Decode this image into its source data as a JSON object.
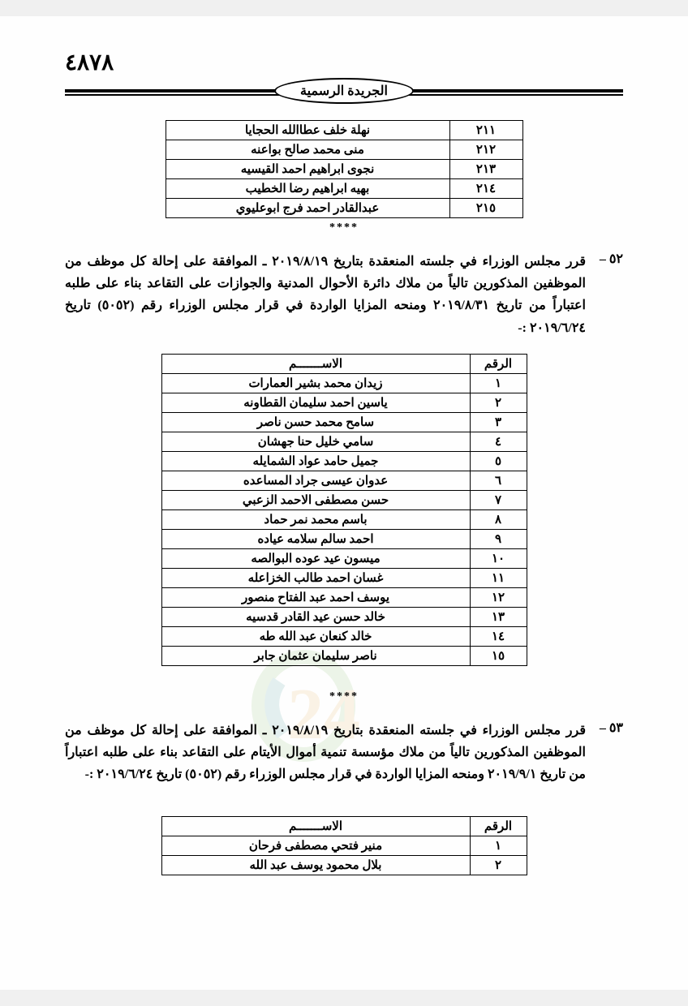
{
  "page_number": "٤٨٧٨",
  "header_title": "الجريدة الرسمية",
  "colors": {
    "page_bg": "#fefefe",
    "text": "#000000",
    "rule": "#000000",
    "watermark_green": "#6fb04f",
    "watermark_teal": "#2d8b8b",
    "watermark_orange": "#e3a03a"
  },
  "table1": {
    "col_num_width": 90,
    "col_name_width": 350,
    "rows": [
      {
        "num": "٢١١",
        "name": "نهلة خلف عطاالله الحجايا"
      },
      {
        "num": "٢١٢",
        "name": "منى محمد صالح بواعنه"
      },
      {
        "num": "٢١٣",
        "name": "نجوى ابراهيم احمد القيسيه"
      },
      {
        "num": "٢١٤",
        "name": "بهيه ابراهيم رضا الخطيب"
      },
      {
        "num": "٢١٥",
        "name": "عبدالقادر احمد فرج ابوعليوي"
      }
    ]
  },
  "stars": "****",
  "para52": {
    "num": "٥٢ –",
    "text": "قرر مجلس الوزراء في جلسته المنعقدة بتاريخ ٢٠١٩/٨/١٩ ـ الموافقة على إحالة كل موظف من الموظفين المذكورين تالياً من ملاك دائرة الأحوال المدنية والجوازات على التقاعد بناء على طلبه اعتباراً من تاريخ ٢٠١٩/٨/٣١ ومنحه المزايا الواردة في قرار مجلس الوزراء رقم (٥٠٥٢) تاريخ ٢٠١٩/٦/٢٤ :-"
  },
  "table2": {
    "header_num": "الرقم",
    "header_name": "الاســـــــم",
    "col_num_width": 70,
    "col_name_width": 380,
    "rows": [
      {
        "num": "١",
        "name": "زيدان محمد بشير العمارات"
      },
      {
        "num": "٢",
        "name": "ياسين احمد سليمان القطاونه"
      },
      {
        "num": "٣",
        "name": "سامح محمد حسن ناصر"
      },
      {
        "num": "٤",
        "name": "سامي خليل حنا جهشان"
      },
      {
        "num": "٥",
        "name": "جميل حامد عواد الشمايله"
      },
      {
        "num": "٦",
        "name": "عدوان عيسى جراد المساعده"
      },
      {
        "num": "٧",
        "name": "حسن مصطفى الاحمد الزعبي"
      },
      {
        "num": "٨",
        "name": "باسم محمد نمر حماد"
      },
      {
        "num": "٩",
        "name": "احمد سالم سلامه عياده"
      },
      {
        "num": "١٠",
        "name": "ميسون عيد عوده البوالصه"
      },
      {
        "num": "١١",
        "name": "غسان احمد طالب الخزاعله"
      },
      {
        "num": "١٢",
        "name": "يوسف احمد عبد الفتاح منصور"
      },
      {
        "num": "١٣",
        "name": "خالد حسن عيد القادر قدسيه"
      },
      {
        "num": "١٤",
        "name": "خالد كنعان عبد الله طه"
      },
      {
        "num": "١٥",
        "name": "ناصر سليمان عثمان جابر"
      }
    ]
  },
  "para53": {
    "num": "٥٣ –",
    "text": "قرر مجلس الوزراء في جلسته المنعقدة بتاريخ ٢٠١٩/٨/١٩ ـ الموافقة على إحالة كل موظف من الموظفين المذكورين تالياً من ملاك مؤسسة تنمية أموال الأيتام على التقاعد بناء على طلبه اعتباراً من تاريخ ٢٠١٩/٩/١ ومنحه المزايا الواردة في قرار مجلس الوزراء رقم (٥٠٥٢) تاريخ ٢٠١٩/٦/٢٤ :-"
  },
  "table3": {
    "header_num": "الرقم",
    "header_name": "الاســـــــم",
    "col_num_width": 70,
    "col_name_width": 380,
    "rows": [
      {
        "num": "١",
        "name": "منير فتحي مصطفى فرحان"
      },
      {
        "num": "٢",
        "name": "بلال محمود يوسف عبد الله"
      }
    ]
  }
}
